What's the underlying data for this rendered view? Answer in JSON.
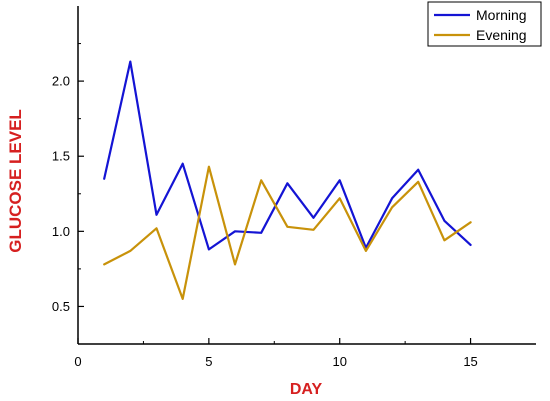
{
  "chart_data": {
    "type": "line",
    "title": "",
    "xlabel": "DAY",
    "ylabel": "GLUCOSE LEVEL",
    "xlim": [
      0,
      17.5
    ],
    "ylim": [
      0.25,
      2.5
    ],
    "x_ticks": [
      0,
      5,
      10,
      15
    ],
    "y_ticks": [
      0.5,
      1.0,
      1.5,
      2.0
    ],
    "x_tick_labels": [
      "0",
      "5",
      "10",
      "15"
    ],
    "y_tick_labels": [
      "0.5",
      "1.0",
      "1.5",
      "2.0"
    ],
    "grid": false,
    "legend_position": "top-right",
    "x": [
      1,
      2,
      3,
      4,
      5,
      6,
      7,
      8,
      9,
      10,
      11,
      12,
      13,
      14,
      15
    ],
    "series": [
      {
        "name": "Morning",
        "color": "#1414d4",
        "values": [
          1.35,
          2.13,
          1.11,
          1.45,
          0.88,
          1.0,
          0.99,
          1.32,
          1.09,
          1.34,
          0.89,
          1.22,
          1.41,
          1.07,
          0.91
        ]
      },
      {
        "name": "Evening",
        "color": "#c8920a",
        "values": [
          0.78,
          0.87,
          1.02,
          0.55,
          1.43,
          0.78,
          1.34,
          1.03,
          1.01,
          1.22,
          0.87,
          1.16,
          1.33,
          0.94,
          1.06
        ]
      }
    ]
  }
}
